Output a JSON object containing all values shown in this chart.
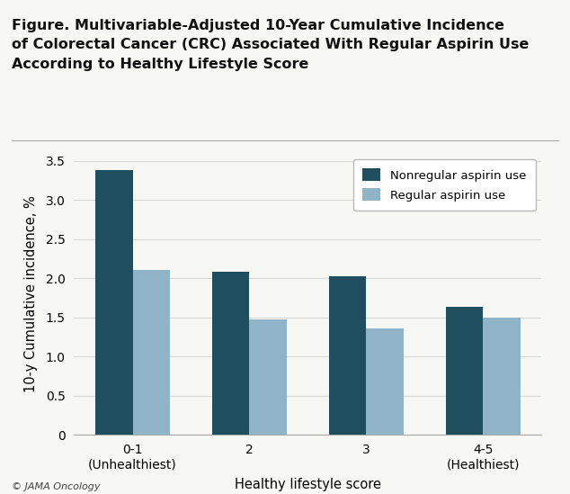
{
  "title_lines": [
    "Figure. Multivariable-Adjusted 10-Year Cumulative Incidence",
    "of Colorectal Cancer (CRC) Associated With Regular Aspirin Use",
    "According to Healthy Lifestyle Score"
  ],
  "categories": [
    "0-1\n(Unhealthiest)",
    "2",
    "3",
    "4-5\n(Healthiest)"
  ],
  "nonregular_values": [
    3.38,
    2.08,
    2.03,
    1.63
  ],
  "regular_values": [
    2.11,
    1.47,
    1.36,
    1.5
  ],
  "nonregular_color": "#1f4e5f",
  "regular_color": "#8fb4c8",
  "xlabel": "Healthy lifestyle score",
  "ylabel": "10-y Cumulative incidence, %",
  "ylim": [
    0,
    3.6
  ],
  "yticks": [
    0,
    0.5,
    1.0,
    1.5,
    2.0,
    2.5,
    3.0,
    3.5
  ],
  "ytick_labels": [
    "0",
    "0.5",
    "1.0",
    "1.5",
    "2.0",
    "2.5",
    "3.0",
    "3.5"
  ],
  "legend_labels": [
    "Nonregular aspirin use",
    "Regular aspirin use"
  ],
  "footer": "© JAMA Oncology",
  "bar_width": 0.32,
  "background_color": "#f7f7f3",
  "plot_bg_color": "#f7f7f3",
  "top_bar_color": "#5aaa70",
  "grid_color": "#d8d8d8",
  "separator_color": "#aaaaaa",
  "title_fontsize": 11.5,
  "axis_label_fontsize": 10.5,
  "tick_fontsize": 10,
  "legend_fontsize": 9.5,
  "footer_fontsize": 8
}
